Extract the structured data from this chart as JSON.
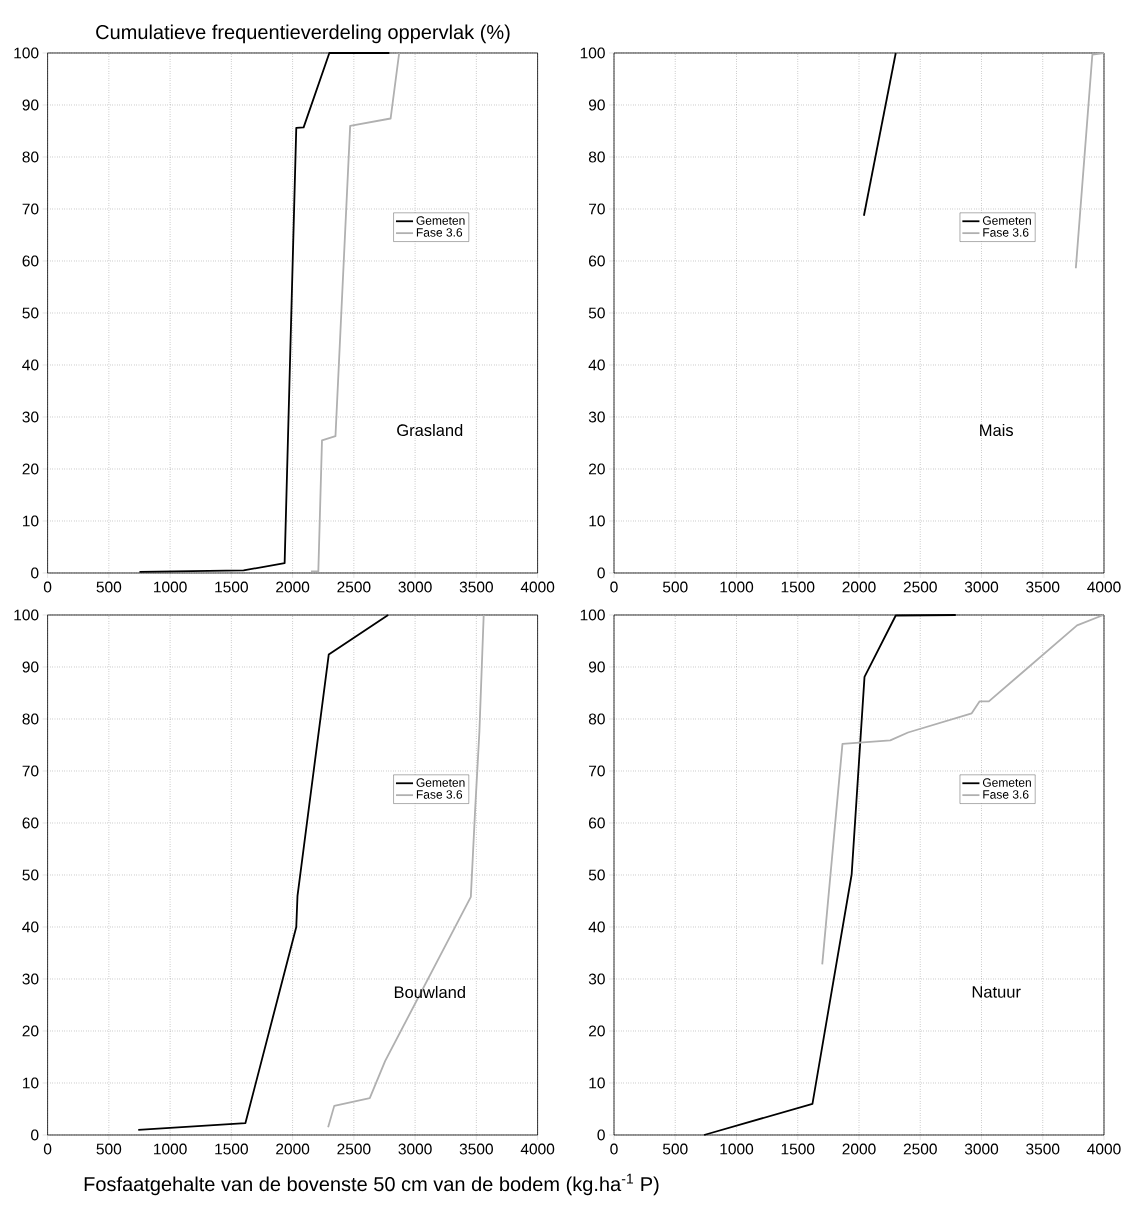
{
  "chart_data": [
    {
      "type": "line",
      "ylabel": "Cumulatieve frequentieverdeling oppervlak (%)",
      "xlim": [
        0,
        4000
      ],
      "ylim": [
        0,
        100
      ],
      "xticks": [
        0,
        500,
        1000,
        1500,
        2000,
        2500,
        3000,
        3500,
        4000
      ],
      "yticks": [
        0,
        10,
        20,
        30,
        40,
        50,
        60,
        70,
        80,
        90,
        100
      ],
      "grid": true,
      "legend": "right",
      "line_style": "solid",
      "annotations": [
        "Grasland"
      ],
      "series": [
        {
          "name": "Gemeten",
          "color": "#000000",
          "x": [
            750,
            1600,
            1935,
            2030,
            2090,
            2300,
            2790
          ],
          "values": [
            0.2,
            0.5,
            1.9,
            85.6,
            85.7,
            100,
            100
          ]
        },
        {
          "name": "Fase 3.6",
          "color": "#b0b0b0",
          "x": [
            2150,
            2210,
            2240,
            2350,
            2470,
            2800,
            2870
          ],
          "values": [
            0.3,
            0.3,
            25.5,
            26.3,
            86,
            87.4,
            100
          ]
        }
      ]
    },
    {
      "type": "line",
      "xlim": [
        0,
        4000
      ],
      "ylim": [
        0,
        100
      ],
      "xticks": [
        0,
        500,
        1000,
        1500,
        2000,
        2500,
        3000,
        3500,
        4000
      ],
      "yticks": [
        0,
        10,
        20,
        30,
        40,
        50,
        60,
        70,
        80,
        90,
        100
      ],
      "grid": true,
      "legend": "right",
      "line_style": "solid",
      "annotations": [
        "Mais"
      ],
      "series": [
        {
          "name": "Gemeten",
          "color": "#000000",
          "x": [
            2040,
            2300
          ],
          "values": [
            68.7,
            100
          ]
        },
        {
          "name": "Fase 3.6",
          "color": "#b0b0b0",
          "x": [
            3770,
            3905,
            4000
          ],
          "values": [
            58.6,
            99.7,
            100
          ]
        }
      ]
    },
    {
      "type": "line",
      "xlabel": "Fosfaatgehalte van de bovenste 50 cm van de bodem (kg.ha$^{-1}$ P)",
      "xlim": [
        0,
        4000
      ],
      "ylim": [
        0,
        100
      ],
      "xticks": [
        0,
        500,
        1000,
        1500,
        2000,
        2500,
        3000,
        3500,
        4000
      ],
      "yticks": [
        0,
        10,
        20,
        30,
        40,
        50,
        60,
        70,
        80,
        90,
        100
      ],
      "grid": true,
      "legend": "right",
      "line_style": "solid",
      "annotations": [
        "Bouwland"
      ],
      "series": [
        {
          "name": "Gemeten",
          "color": "#000000",
          "x": [
            740,
            1615,
            2030,
            2040,
            2295,
            2780
          ],
          "values": [
            1,
            2.3,
            40,
            46,
            92.4,
            100
          ]
        },
        {
          "name": "Fase 3.6",
          "color": "#b0b0b0",
          "x": [
            2290,
            2340,
            2630,
            2755,
            3455,
            3490,
            3525,
            3560
          ],
          "values": [
            1.5,
            5.6,
            7.1,
            14.2,
            45.8,
            62.5,
            77.6,
            100
          ]
        }
      ]
    },
    {
      "type": "line",
      "xlim": [
        0,
        4000
      ],
      "ylim": [
        0,
        100
      ],
      "xticks": [
        0,
        500,
        1000,
        1500,
        2000,
        2500,
        3000,
        3500,
        4000
      ],
      "yticks": [
        0,
        10,
        20,
        30,
        40,
        50,
        60,
        70,
        80,
        90,
        100
      ],
      "grid": true,
      "legend": "right",
      "line_style": "solid",
      "annotations": [
        "Natuur"
      ],
      "series": [
        {
          "name": "Gemeten",
          "color": "#000000",
          "x": [
            735,
            1620,
            1940,
            2045,
            2300,
            2790
          ],
          "values": [
            0,
            6,
            50.1,
            88.1,
            99.9,
            100
          ]
        },
        {
          "name": "Fase 3.6",
          "color": "#b0b0b0",
          "x": [
            1700,
            1865,
            2255,
            2400,
            2920,
            2985,
            3060,
            3780,
            3995
          ],
          "values": [
            32.8,
            75.2,
            75.9,
            77.4,
            81.1,
            83.4,
            83.4,
            98,
            100
          ]
        }
      ]
    }
  ]
}
